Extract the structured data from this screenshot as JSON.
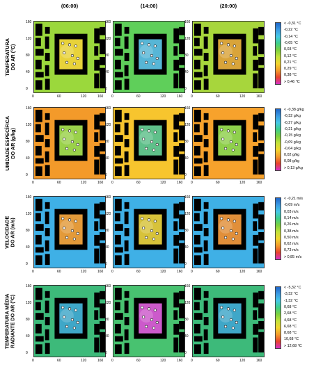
{
  "columns": [
    "(06:00)",
    "(14:00)",
    "(20:00)"
  ],
  "axis": {
    "y_ticks": [
      "160",
      "120",
      "80",
      "40",
      "0"
    ],
    "x_ticks": [
      "0",
      "60",
      "120",
      "160"
    ]
  },
  "rows": [
    {
      "label": "TEMPERATURA\nDO AR (°C)",
      "legend": [
        "< -0,31 °C",
        "-0,22 °C",
        "-0,14 °C",
        "-0,05 °C",
        "0,03 °C",
        "0,12 °C",
        "0,21 °C",
        "0,29 °C",
        "0,38 °C",
        "> 0,46 °C"
      ],
      "colors": {
        "outer": [
          "#9bd83c",
          "#5fcf5a",
          "#a7d63c"
        ],
        "center": [
          "#e8d23a",
          "#57b6d6",
          "#d9a43a"
        ]
      }
    },
    {
      "label": "UMIDADE ESPECÍFICA\nDO AR (g/kg)",
      "legend": [
        "< -0,38 g/kg",
        "-0,32 g/kg",
        "-0,27 g/kg",
        "-0,21 g/kg",
        "-0,15 g/kg",
        "-0,09 g/kg",
        "-0,04 g/kg",
        "0,02 g/kg",
        "0,08 g/kg",
        "> 0,13 g/kg"
      ],
      "colors": {
        "outer": [
          "#f39a2a",
          "#f7c52e",
          "#f7a22c"
        ],
        "center": [
          "#9ad14a",
          "#5fc08a",
          "#8fd04c"
        ]
      }
    },
    {
      "label": "VELOCIDADE\nDO AR (m/s)",
      "legend": [
        "< -0,21 m/s",
        "-0,09 m/s",
        "0,03 m/s",
        "0,14 m/s",
        "0,26 m/s",
        "0,38 m/s",
        "0,50 m/s",
        "0,62 m/s",
        "0,73 m/s",
        "> 0,85 m/s"
      ],
      "colors": {
        "outer": [
          "#3fb0e6",
          "#3fb0e6",
          "#3fb0e6"
        ],
        "center": [
          "#e39a3a",
          "#d7c23a",
          "#e18f3a"
        ]
      }
    },
    {
      "label": "TEMPERATURA MÉDIA\nRADIANTE DO AR (°C)",
      "legend": [
        "< -5,32 °C",
        "-3,32 °C",
        "-1,32 °C",
        "0,68 °C",
        "2,68 °C",
        "4,68 °C",
        "6,68 °C",
        "8,68 °C",
        "10,68 °C",
        "> 12,68 °C"
      ],
      "colors": {
        "outer": [
          "#3dba7a",
          "#48c270",
          "#3dba7a"
        ],
        "center": [
          "#3fa7c8",
          "#cc5acb",
          "#3fa7c8"
        ]
      }
    }
  ],
  "legend_colors": [
    "#1f66c9",
    "#3b9ae3",
    "#45c8e6",
    "#3ecf8a",
    "#7dd13e",
    "#c4e23a",
    "#f2d52f",
    "#f39b2b",
    "#e8442d",
    "#d62fc8"
  ]
}
